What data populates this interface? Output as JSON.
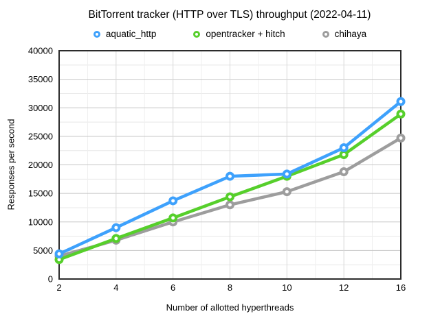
{
  "title": "BitTorrent tracker (HTTP over TLS) throughput (2022-04-11)",
  "legend": {
    "items": [
      {
        "label": "aquatic_http",
        "color": "#3EA1FC",
        "marker": "ring-icon"
      },
      {
        "label": "opentracker + hitch",
        "color": "#56CF2B",
        "marker": "ring-icon"
      },
      {
        "label": "chihaya",
        "color": "#9D9D9D",
        "marker": "ring-icon"
      }
    ]
  },
  "axes": {
    "x_title": "Number of allotted hyperthreads",
    "y_title": "Responses per second"
  },
  "chart_data": {
    "type": "line",
    "title": "BitTorrent tracker (HTTP over TLS) throughput (2022-04-11)",
    "xlabel": "Number of allotted hyperthreads",
    "ylabel": "Responses per second",
    "categories": [
      2,
      4,
      6,
      8,
      10,
      12,
      16
    ],
    "series": [
      {
        "name": "aquatic_http",
        "color": "#3EA1FC",
        "values": [
          4400,
          9000,
          13700,
          18000,
          18400,
          23000,
          31100
        ]
      },
      {
        "name": "opentracker + hitch",
        "color": "#56CF2B",
        "values": [
          3400,
          7100,
          10700,
          14400,
          18000,
          21800,
          28900
        ]
      },
      {
        "name": "chihaya",
        "color": "#9D9D9D",
        "values": [
          4000,
          6800,
          10000,
          13000,
          15300,
          18800,
          24700
        ]
      }
    ],
    "ylim": [
      0,
      40000
    ],
    "y_major_ticks": [
      0,
      5000,
      10000,
      15000,
      20000,
      25000,
      30000,
      35000,
      40000
    ],
    "y_minor_step": 2500,
    "x_tick_labels": [
      "2",
      "4",
      "6",
      "8",
      "10",
      "12",
      "16"
    ],
    "grid": true,
    "legend_position": "top",
    "marker_style": "ring",
    "colors": {
      "plot_border": "#2b2b2b",
      "grid_major_h": "#c4c4c4",
      "grid_minor_h": "#e8e8e8",
      "grid_major_v": "#d8d8d8",
      "grid_minor_v": "#efefef",
      "background": "#ffffff",
      "text": "#000000"
    }
  }
}
